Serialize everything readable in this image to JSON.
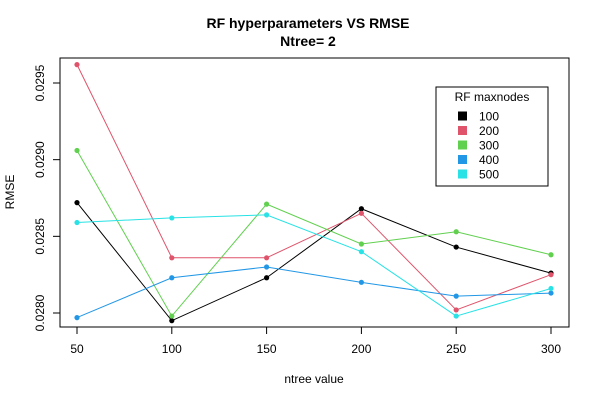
{
  "chart_data": {
    "type": "line",
    "title": "RF hyperparameters VS RMSE",
    "subtitle": "Ntree= 2",
    "xlabel": "ntree value",
    "ylabel": "RMSE",
    "x": [
      50,
      100,
      150,
      200,
      250,
      300
    ],
    "xlim": [
      50,
      300
    ],
    "ylim": [
      0.0279,
      0.0297
    ],
    "yticks": [
      "0.0280",
      "0.0285",
      "0.0290",
      "0.0295"
    ],
    "ytick_values": [
      0.028,
      0.0285,
      0.029,
      0.0295
    ],
    "xticks": [
      "50",
      "100",
      "150",
      "200",
      "250",
      "300"
    ],
    "grid": false,
    "legend": {
      "title": "RF maxnodes",
      "placement": "top-right"
    },
    "series": [
      {
        "name": "100",
        "color": "#000000",
        "values": [
          0.02872,
          0.02795,
          0.02823,
          0.02868,
          0.02843,
          0.02826
        ]
      },
      {
        "name": "200",
        "color": "#DF536B",
        "values": [
          0.02962,
          0.02836,
          0.02836,
          0.02865,
          0.02802,
          0.02825
        ]
      },
      {
        "name": "300",
        "color": "#61D04F",
        "values": [
          0.02906,
          0.02798,
          0.02871,
          0.02845,
          0.02853,
          0.02838
        ]
      },
      {
        "name": "400",
        "color": "#2297E6",
        "values": [
          0.02797,
          0.02823,
          0.0283,
          0.0282,
          0.02811,
          0.02813
        ]
      },
      {
        "name": "500",
        "color": "#28E2E5",
        "values": [
          0.02859,
          0.02862,
          0.02864,
          0.0284,
          0.02798,
          0.02816
        ]
      }
    ]
  }
}
